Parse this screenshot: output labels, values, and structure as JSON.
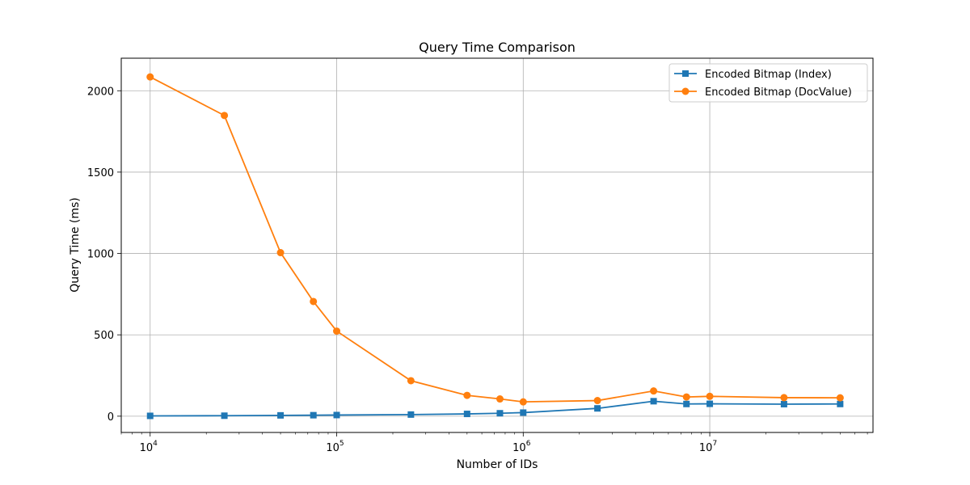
{
  "chart_data": {
    "type": "line",
    "title": "Query Time Comparison",
    "xlabel": "Number of IDs",
    "ylabel": "Query Time (ms)",
    "x_scale": "log",
    "xlim": [
      7000,
      75000000
    ],
    "ylim": [
      -100,
      2200
    ],
    "grid": true,
    "legend_position": "top-right",
    "x_ticks": [
      {
        "value": 10000,
        "base": "10",
        "exp": "4"
      },
      {
        "value": 100000,
        "base": "10",
        "exp": "5"
      },
      {
        "value": 1000000,
        "base": "10",
        "exp": "6"
      },
      {
        "value": 10000000,
        "base": "10",
        "exp": "7"
      }
    ],
    "y_ticks": [
      0,
      500,
      1000,
      1500,
      2000
    ],
    "x": [
      10000,
      25000,
      50000,
      75000,
      100000,
      250000,
      500000,
      750000,
      1000000,
      2500000,
      5000000,
      7500000,
      10000000,
      25000000,
      50000000
    ],
    "series": [
      {
        "name": "Encoded Bitmap (Index)",
        "color": "#1f77b4",
        "marker": "square",
        "values": [
          2,
          3,
          5,
          6,
          7,
          10,
          14,
          18,
          22,
          48,
          92,
          75,
          76,
          74,
          75
        ]
      },
      {
        "name": "Encoded Bitmap (DocValue)",
        "color": "#ff7f0e",
        "marker": "circle",
        "values": [
          2085,
          1848,
          1005,
          705,
          523,
          218,
          128,
          106,
          88,
          96,
          155,
          118,
          122,
          114,
          113
        ]
      }
    ]
  }
}
